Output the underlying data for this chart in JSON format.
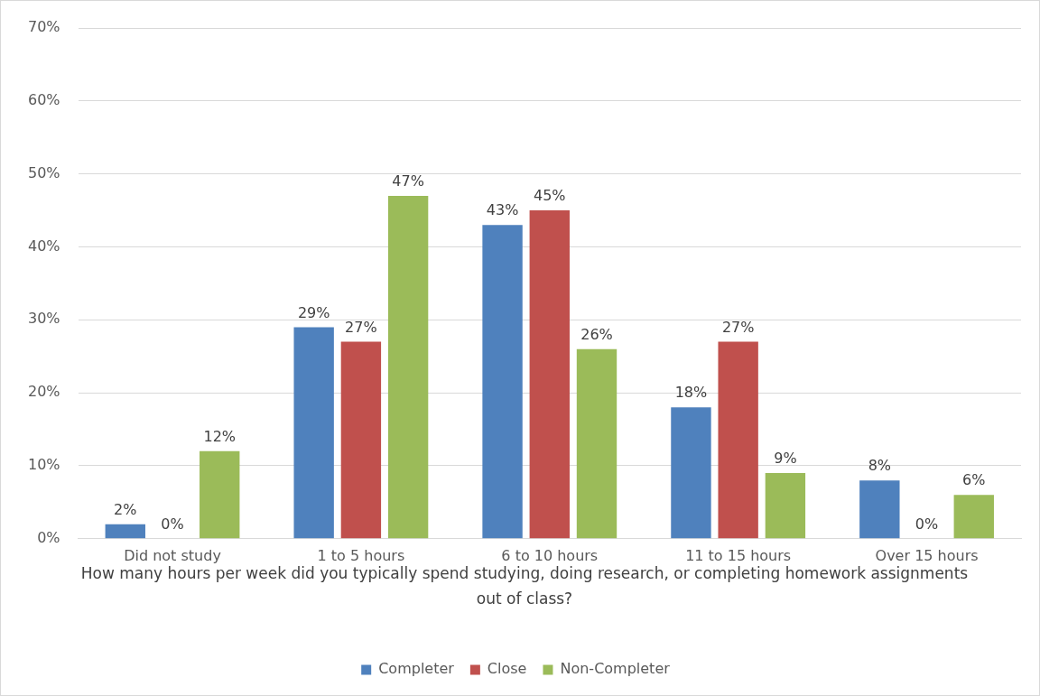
{
  "chart_data": {
    "type": "bar",
    "xlabel": "How many hours per week did you typically spend studying, doing research, or completing homework assignments out of class?",
    "categories": [
      "Did not study",
      "1 to 5 hours",
      "6 to 10 hours",
      "11 to 15 hours",
      "Over 15 hours"
    ],
    "series": [
      {
        "name": "Completer",
        "color": "#4f81bd",
        "values": [
          2,
          29,
          43,
          18,
          8
        ],
        "value_labels": [
          "2%",
          "29%",
          "43%",
          "18%",
          "8%"
        ]
      },
      {
        "name": "Close",
        "color": "#c0504d",
        "values": [
          0,
          27,
          45,
          27,
          0
        ],
        "value_labels": [
          "0%",
          "27%",
          "45%",
          "27%",
          "0%"
        ]
      },
      {
        "name": "Non-Completer",
        "color": "#9bbb59",
        "values": [
          12,
          47,
          26,
          9,
          6
        ],
        "value_labels": [
          "12%",
          "47%",
          "26%",
          "9%",
          "6%"
        ]
      }
    ],
    "ylim": [
      0,
      70
    ],
    "yticks": [
      {
        "value": 0,
        "label": "0%"
      },
      {
        "value": 10,
        "label": "10%"
      },
      {
        "value": 20,
        "label": "20%"
      },
      {
        "value": 30,
        "label": "30%"
      },
      {
        "value": 40,
        "label": "40%"
      },
      {
        "value": 50,
        "label": "50%"
      },
      {
        "value": 60,
        "label": "60%"
      },
      {
        "value": 70,
        "label": "70%"
      }
    ],
    "grid": "y",
    "legend": "bottom"
  }
}
